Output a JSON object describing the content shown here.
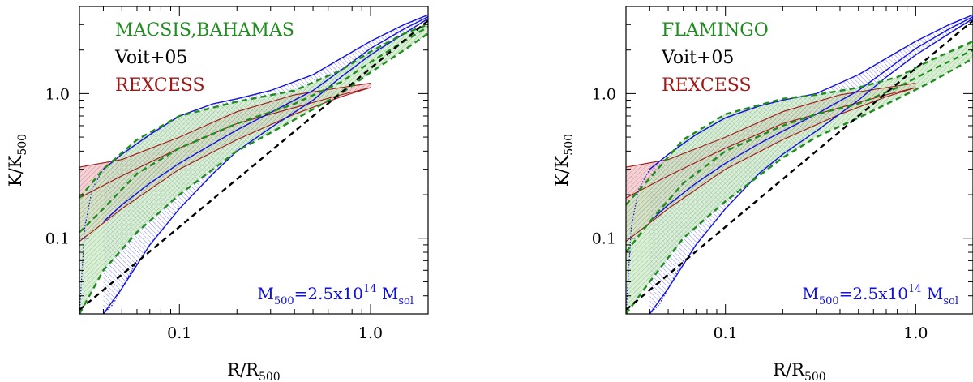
{
  "colors": {
    "green": "#1e8c1e",
    "green_fill": "#c8e6c0",
    "blue": "#1010e0",
    "blue_fill": "#c8c8f4",
    "red": "#a01818",
    "red_fill": "#efc0c4",
    "black": "#000000"
  },
  "chart_data": [
    {
      "type": "line",
      "xscale": "log",
      "yscale": "log",
      "xlim": [
        0.03,
        2.0
      ],
      "ylim": [
        0.03,
        4.0
      ],
      "xlabel": "R/R",
      "xlabel_sub": "500",
      "ylabel": "K/K",
      "ylabel_sub": "500",
      "x_ticks": [
        {
          "v": 0.1,
          "label": "0.1"
        },
        {
          "v": 1.0,
          "label": "1.0"
        }
      ],
      "y_ticks": [
        {
          "v": 0.1,
          "label": "0.1"
        },
        {
          "v": 1.0,
          "label": "1.0"
        }
      ],
      "legend": [
        {
          "text": "MACSIS,BAHAMAS",
          "color": "#1e8c1e"
        },
        {
          "text": "Voit+05",
          "color": "#000000"
        },
        {
          "text": "REXCESS",
          "color": "#a01818"
        }
      ],
      "annotation": {
        "M": "M",
        "M_sub": "500",
        "eq": "=2.5x10",
        "exp": "14",
        "unit": " M",
        "unit_sub": "sol",
        "color": "#1010e0"
      },
      "voit": {
        "x": [
          0.03,
          2.0
        ],
        "y": [
          0.032,
          3.2
        ]
      },
      "series": [
        {
          "name": "REXCESS",
          "color": "#a01818",
          "x": [
            0.03,
            0.05,
            0.1,
            0.2,
            0.4,
            0.7,
            1.0
          ],
          "y_upper": [
            0.31,
            0.35,
            0.5,
            0.75,
            0.98,
            1.1,
            1.18
          ],
          "y_median": [
            0.19,
            0.27,
            0.42,
            0.62,
            0.8,
            0.98,
            1.1
          ],
          "y_lower": [
            0.095,
            0.16,
            0.3,
            0.48,
            0.72,
            0.95,
            1.1
          ]
        },
        {
          "name": "MACSIS,BAHAMAS",
          "color": "#1e8c1e",
          "x": [
            0.03,
            0.04,
            0.06,
            0.1,
            0.2,
            0.4,
            0.7,
            1.0,
            1.5,
            2.0
          ],
          "y_upper": [
            0.19,
            0.3,
            0.48,
            0.7,
            0.88,
            1.05,
            1.45,
            1.95,
            2.6,
            3.0
          ],
          "y_median": [
            0.11,
            0.16,
            0.28,
            0.42,
            0.62,
            0.85,
            1.2,
            1.65,
            2.3,
            2.9
          ],
          "y_lower": [
            0.03,
            0.06,
            0.11,
            0.2,
            0.4,
            0.66,
            1.0,
            1.4,
            2.0,
            2.6
          ]
        },
        {
          "name": "M500=2.5x10^14 Msol",
          "color": "#1010e0",
          "x": [
            0.04,
            0.05,
            0.07,
            0.1,
            0.15,
            0.2,
            0.3,
            0.5,
            0.7,
            1.0,
            1.5,
            2.0
          ],
          "y_upper": [
            0.3,
            0.38,
            0.52,
            0.7,
            0.85,
            0.92,
            1.05,
            1.35,
            1.75,
            2.3,
            3.0,
            3.5
          ],
          "y_median": [
            0.13,
            0.17,
            0.24,
            0.33,
            0.45,
            0.56,
            0.74,
            1.05,
            1.45,
            2.05,
            2.8,
            3.4
          ],
          "y_lower": [
            0.03,
            0.045,
            0.09,
            0.16,
            0.28,
            0.4,
            0.58,
            0.9,
            1.3,
            1.85,
            2.6,
            3.3
          ],
          "inner_dotted": {
            "x": [
              0.03,
              0.032,
              0.035,
              0.04
            ],
            "y": [
              0.03,
              0.12,
              0.22,
              0.3
            ]
          },
          "outer_dotted": {
            "x": [
              0.04,
              0.045,
              0.05,
              0.06
            ],
            "y": [
              0.03,
              0.035,
              0.045,
              0.07
            ]
          }
        }
      ]
    },
    {
      "type": "line",
      "xscale": "log",
      "yscale": "log",
      "xlim": [
        0.03,
        2.0
      ],
      "ylim": [
        0.03,
        4.0
      ],
      "xlabel": "R/R",
      "xlabel_sub": "500",
      "ylabel": "K/K",
      "ylabel_sub": "500",
      "x_ticks": [
        {
          "v": 0.1,
          "label": "0.1"
        },
        {
          "v": 1.0,
          "label": "1.0"
        }
      ],
      "y_ticks": [
        {
          "v": 0.1,
          "label": "0.1"
        },
        {
          "v": 1.0,
          "label": "1.0"
        }
      ],
      "legend": [
        {
          "text": "FLAMINGO",
          "color": "#1e8c1e"
        },
        {
          "text": "Voit+05",
          "color": "#000000"
        },
        {
          "text": "REXCESS",
          "color": "#a01818"
        }
      ],
      "annotation": {
        "M": "M",
        "M_sub": "500",
        "eq": "=2.5x10",
        "exp": "14",
        "unit": " M",
        "unit_sub": "sol",
        "color": "#1010e0"
      },
      "voit": {
        "x": [
          0.03,
          2.0
        ],
        "y": [
          0.032,
          3.2
        ]
      },
      "series": [
        {
          "name": "REXCESS",
          "color": "#a01818",
          "x": [
            0.03,
            0.05,
            0.1,
            0.2,
            0.4,
            0.7,
            1.0
          ],
          "y_upper": [
            0.31,
            0.35,
            0.5,
            0.75,
            0.98,
            1.1,
            1.18
          ],
          "y_median": [
            0.19,
            0.27,
            0.42,
            0.62,
            0.8,
            0.98,
            1.1
          ],
          "y_lower": [
            0.095,
            0.16,
            0.3,
            0.48,
            0.72,
            0.95,
            1.1
          ]
        },
        {
          "name": "FLAMINGO",
          "color": "#1e8c1e",
          "x": [
            0.03,
            0.04,
            0.06,
            0.1,
            0.2,
            0.3,
            0.5,
            0.8,
            1.2,
            2.0
          ],
          "y_upper": [
            0.17,
            0.26,
            0.48,
            0.72,
            0.92,
            0.98,
            1.1,
            1.3,
            1.7,
            2.3
          ],
          "y_median": [
            0.08,
            0.13,
            0.24,
            0.4,
            0.6,
            0.72,
            0.85,
            1.1,
            1.45,
            2.0
          ],
          "y_lower": [
            0.03,
            0.05,
            0.1,
            0.18,
            0.36,
            0.5,
            0.68,
            0.92,
            1.2,
            1.75
          ]
        },
        {
          "name": "M500=2.5x10^14 Msol",
          "color": "#1010e0",
          "x": [
            0.04,
            0.05,
            0.07,
            0.1,
            0.15,
            0.2,
            0.3,
            0.5,
            0.7,
            1.0,
            1.5,
            2.0
          ],
          "y_upper": [
            0.3,
            0.38,
            0.52,
            0.68,
            0.82,
            0.9,
            1.0,
            1.35,
            1.75,
            2.3,
            3.0,
            3.5
          ],
          "y_median": [
            0.13,
            0.17,
            0.24,
            0.33,
            0.45,
            0.55,
            0.72,
            1.05,
            1.45,
            2.05,
            2.8,
            3.4
          ],
          "y_lower": [
            0.03,
            0.045,
            0.09,
            0.16,
            0.28,
            0.38,
            0.55,
            0.9,
            1.3,
            1.85,
            2.6,
            3.3
          ],
          "inner_dotted": {
            "x": [
              0.03,
              0.032,
              0.035,
              0.04
            ],
            "y": [
              0.03,
              0.12,
              0.22,
              0.3
            ]
          },
          "outer_dotted": {
            "x": [
              0.04,
              0.045,
              0.05,
              0.06
            ],
            "y": [
              0.03,
              0.035,
              0.045,
              0.07
            ]
          }
        }
      ]
    }
  ]
}
